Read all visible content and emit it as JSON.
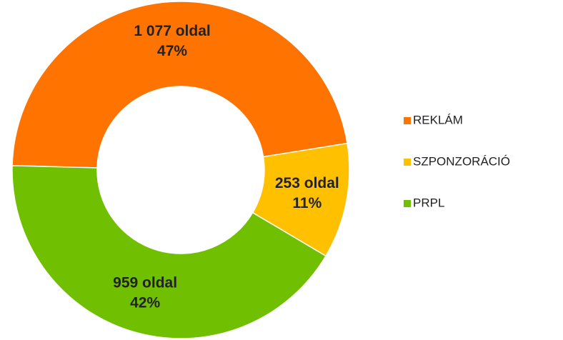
{
  "chart_data": {
    "type": "donut",
    "categories": [
      "REKLÁM",
      "SZPONZORÁCIÓ",
      "PRPL"
    ],
    "values": [
      1077,
      253,
      959
    ],
    "value_labels": [
      "1 077 oldal",
      "253 oldal",
      "959 oldal"
    ],
    "percents": [
      47,
      11,
      42
    ],
    "percent_labels": [
      "47%",
      "11%",
      "42%"
    ],
    "colors": [
      "#ff7300",
      "#ffc000",
      "#70bf00"
    ],
    "legend": "right"
  }
}
